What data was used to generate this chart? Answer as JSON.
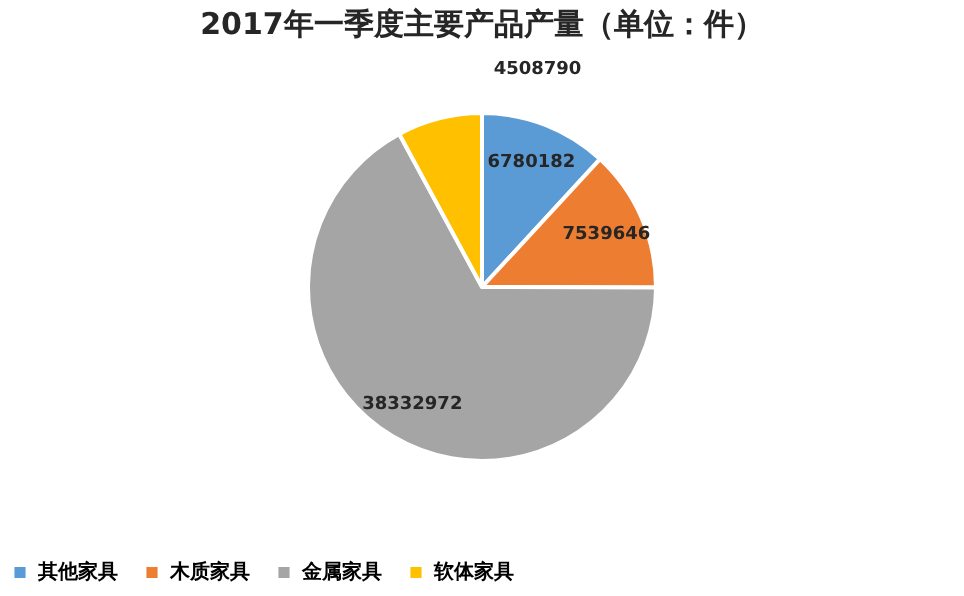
{
  "chart_data": {
    "type": "pie",
    "title": "2017年一季度主要产品产量（单位：件）",
    "categories": [
      "其他家具",
      "木质家具",
      "金属家具",
      "软体家具"
    ],
    "values": [
      6780182,
      7539646,
      38332972,
      4508790
    ],
    "colors": [
      "#5b9bd5",
      "#ed7d31",
      "#a5a5a5",
      "#ffc000"
    ],
    "data_labels": true,
    "legend": "bottom"
  }
}
